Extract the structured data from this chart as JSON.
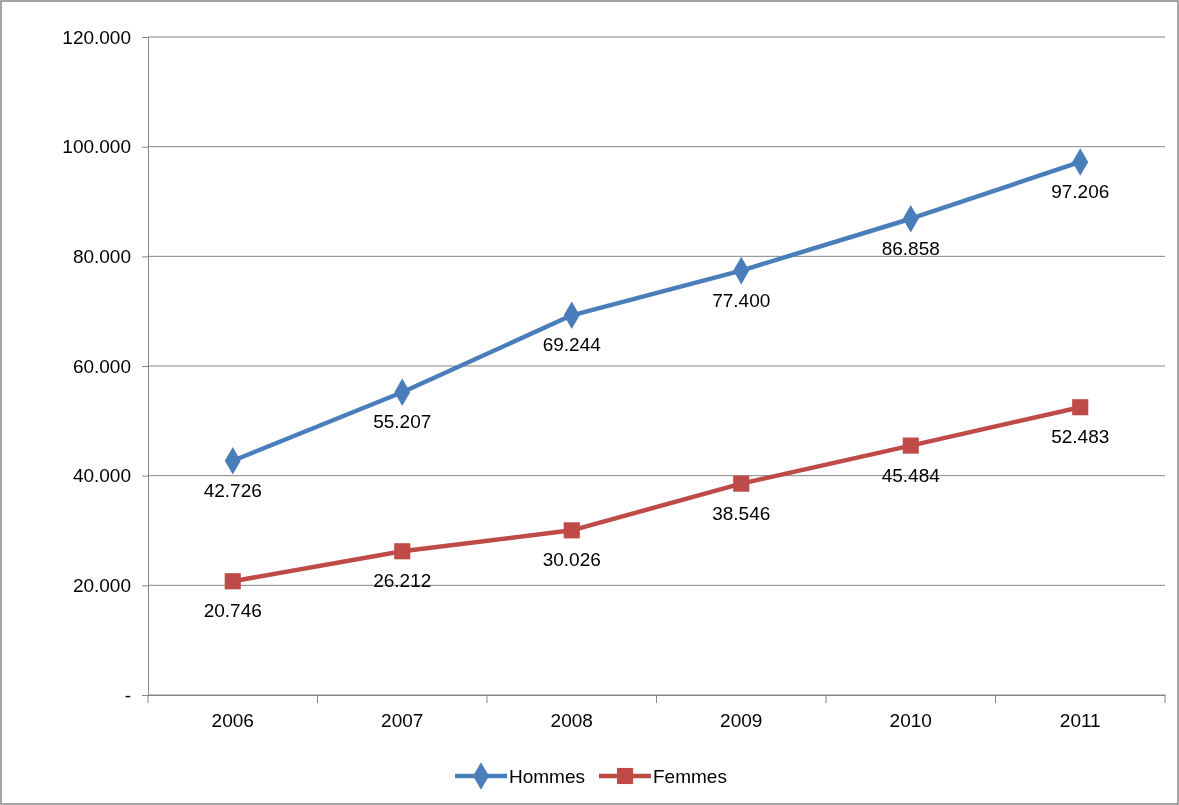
{
  "chart_data": {
    "type": "line",
    "categories": [
      "2006",
      "2007",
      "2008",
      "2009",
      "2010",
      "2011"
    ],
    "series": [
      {
        "name": "Hommes",
        "color": "#4a7ebb",
        "marker": "diamond",
        "values": [
          42726,
          55207,
          69244,
          77400,
          86858,
          97206
        ],
        "value_labels": [
          "42.726",
          "55.207",
          "69.244",
          "77.400",
          "86.858",
          "97.206"
        ]
      },
      {
        "name": "Femmes",
        "color": "#be4b48",
        "marker": "square",
        "values": [
          20746,
          26212,
          30026,
          38546,
          45484,
          52483
        ],
        "value_labels": [
          "20.746",
          "26.212",
          "30.026",
          "38.546",
          "45.484",
          "52.483"
        ]
      }
    ],
    "ylim": [
      0,
      120000
    ],
    "yticks": [
      {
        "value": 0,
        "label": "-"
      },
      {
        "value": 20000,
        "label": "20.000"
      },
      {
        "value": 40000,
        "label": "40.000"
      },
      {
        "value": 60000,
        "label": "60.000"
      },
      {
        "value": 80000,
        "label": "80.000"
      },
      {
        "value": 100000,
        "label": "100.000"
      },
      {
        "value": 120000,
        "label": "120.000"
      }
    ],
    "grid": "y",
    "legend": "bottom",
    "line_style": "solid"
  }
}
